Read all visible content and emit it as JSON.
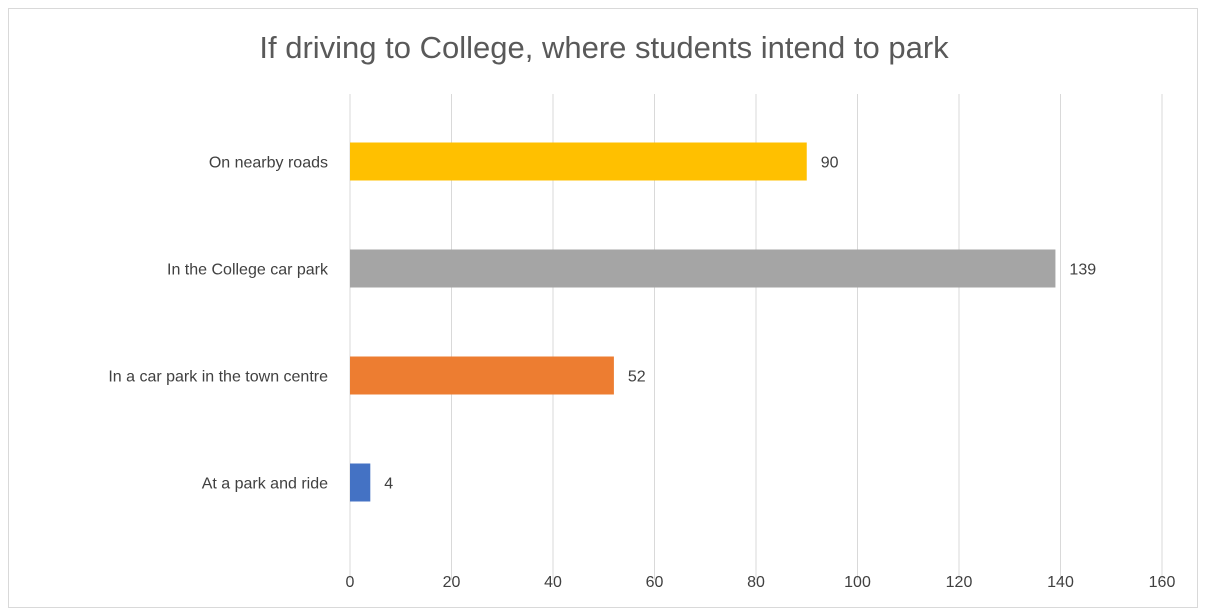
{
  "chart_data": {
    "type": "bar",
    "orientation": "horizontal",
    "title": "If driving to College, where students intend to park",
    "xlabel": "",
    "ylabel": "",
    "categories": [
      "At a park and ride",
      "In a car park in the town centre",
      "In the College car park",
      "On nearby roads"
    ],
    "values": [
      4,
      52,
      139,
      90
    ],
    "colors": [
      "#4472c4",
      "#ed7d31",
      "#a5a5a5",
      "#ffc000"
    ],
    "xlim": [
      0,
      160
    ],
    "ticks": [
      0,
      20,
      40,
      60,
      80,
      100,
      120,
      140,
      160
    ],
    "grid": true,
    "legend": "none",
    "data_labels": true
  }
}
